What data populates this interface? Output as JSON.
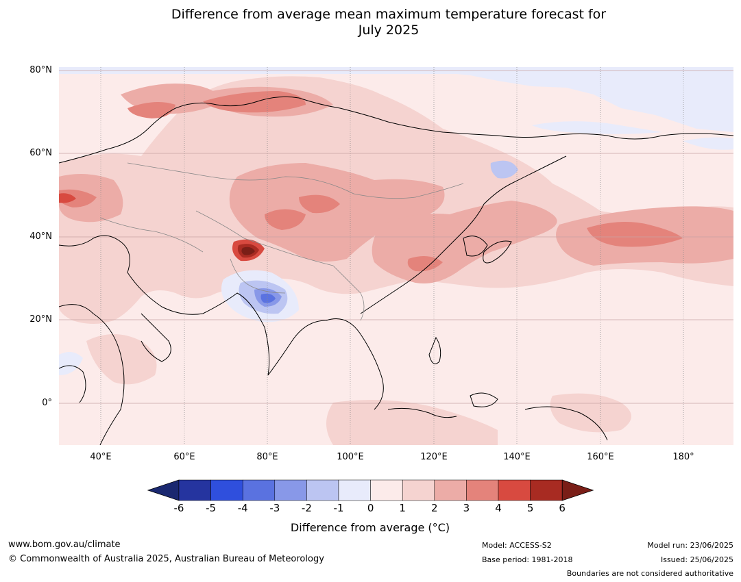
{
  "title_line1": "Difference from average mean maximum temperature forecast for",
  "title_line2": "July 2025",
  "lat_labels": [
    "80°N",
    "60°N",
    "40°N",
    "20°N",
    "0°"
  ],
  "lon_labels": [
    "40°E",
    "60°E",
    "80°E",
    "100°E",
    "120°E",
    "140°E",
    "160°E",
    "180°"
  ],
  "colorbar": {
    "ticks": [
      "-6",
      "-5",
      "-4",
      "-3",
      "-2",
      "-1",
      "0",
      "1",
      "2",
      "3",
      "4",
      "5",
      "6"
    ],
    "colors": [
      "#25349f",
      "#2f4fdd",
      "#5a72e0",
      "#8898e8",
      "#bcc5f2",
      "#e8ebfb",
      "#fcebea",
      "#f5d3d0",
      "#ecaca7",
      "#e4837b",
      "#d84a40",
      "#a82b22"
    ],
    "under_color": "#1a2870",
    "over_color": "#7a1e17",
    "label": "Difference from average (°C)"
  },
  "footer": {
    "website": "www.bom.gov.au/climate",
    "copyright": "© Commonwealth of Australia 2025, Australian Bureau of Meteorology",
    "model": "Model: ACCESS-S2",
    "base_period": "Base period: 1981-2018",
    "model_run": "Model run: 23/06/2025",
    "issued": "Issued: 25/06/2025",
    "disclaimer": "Boundaries are not considered authoritative"
  }
}
